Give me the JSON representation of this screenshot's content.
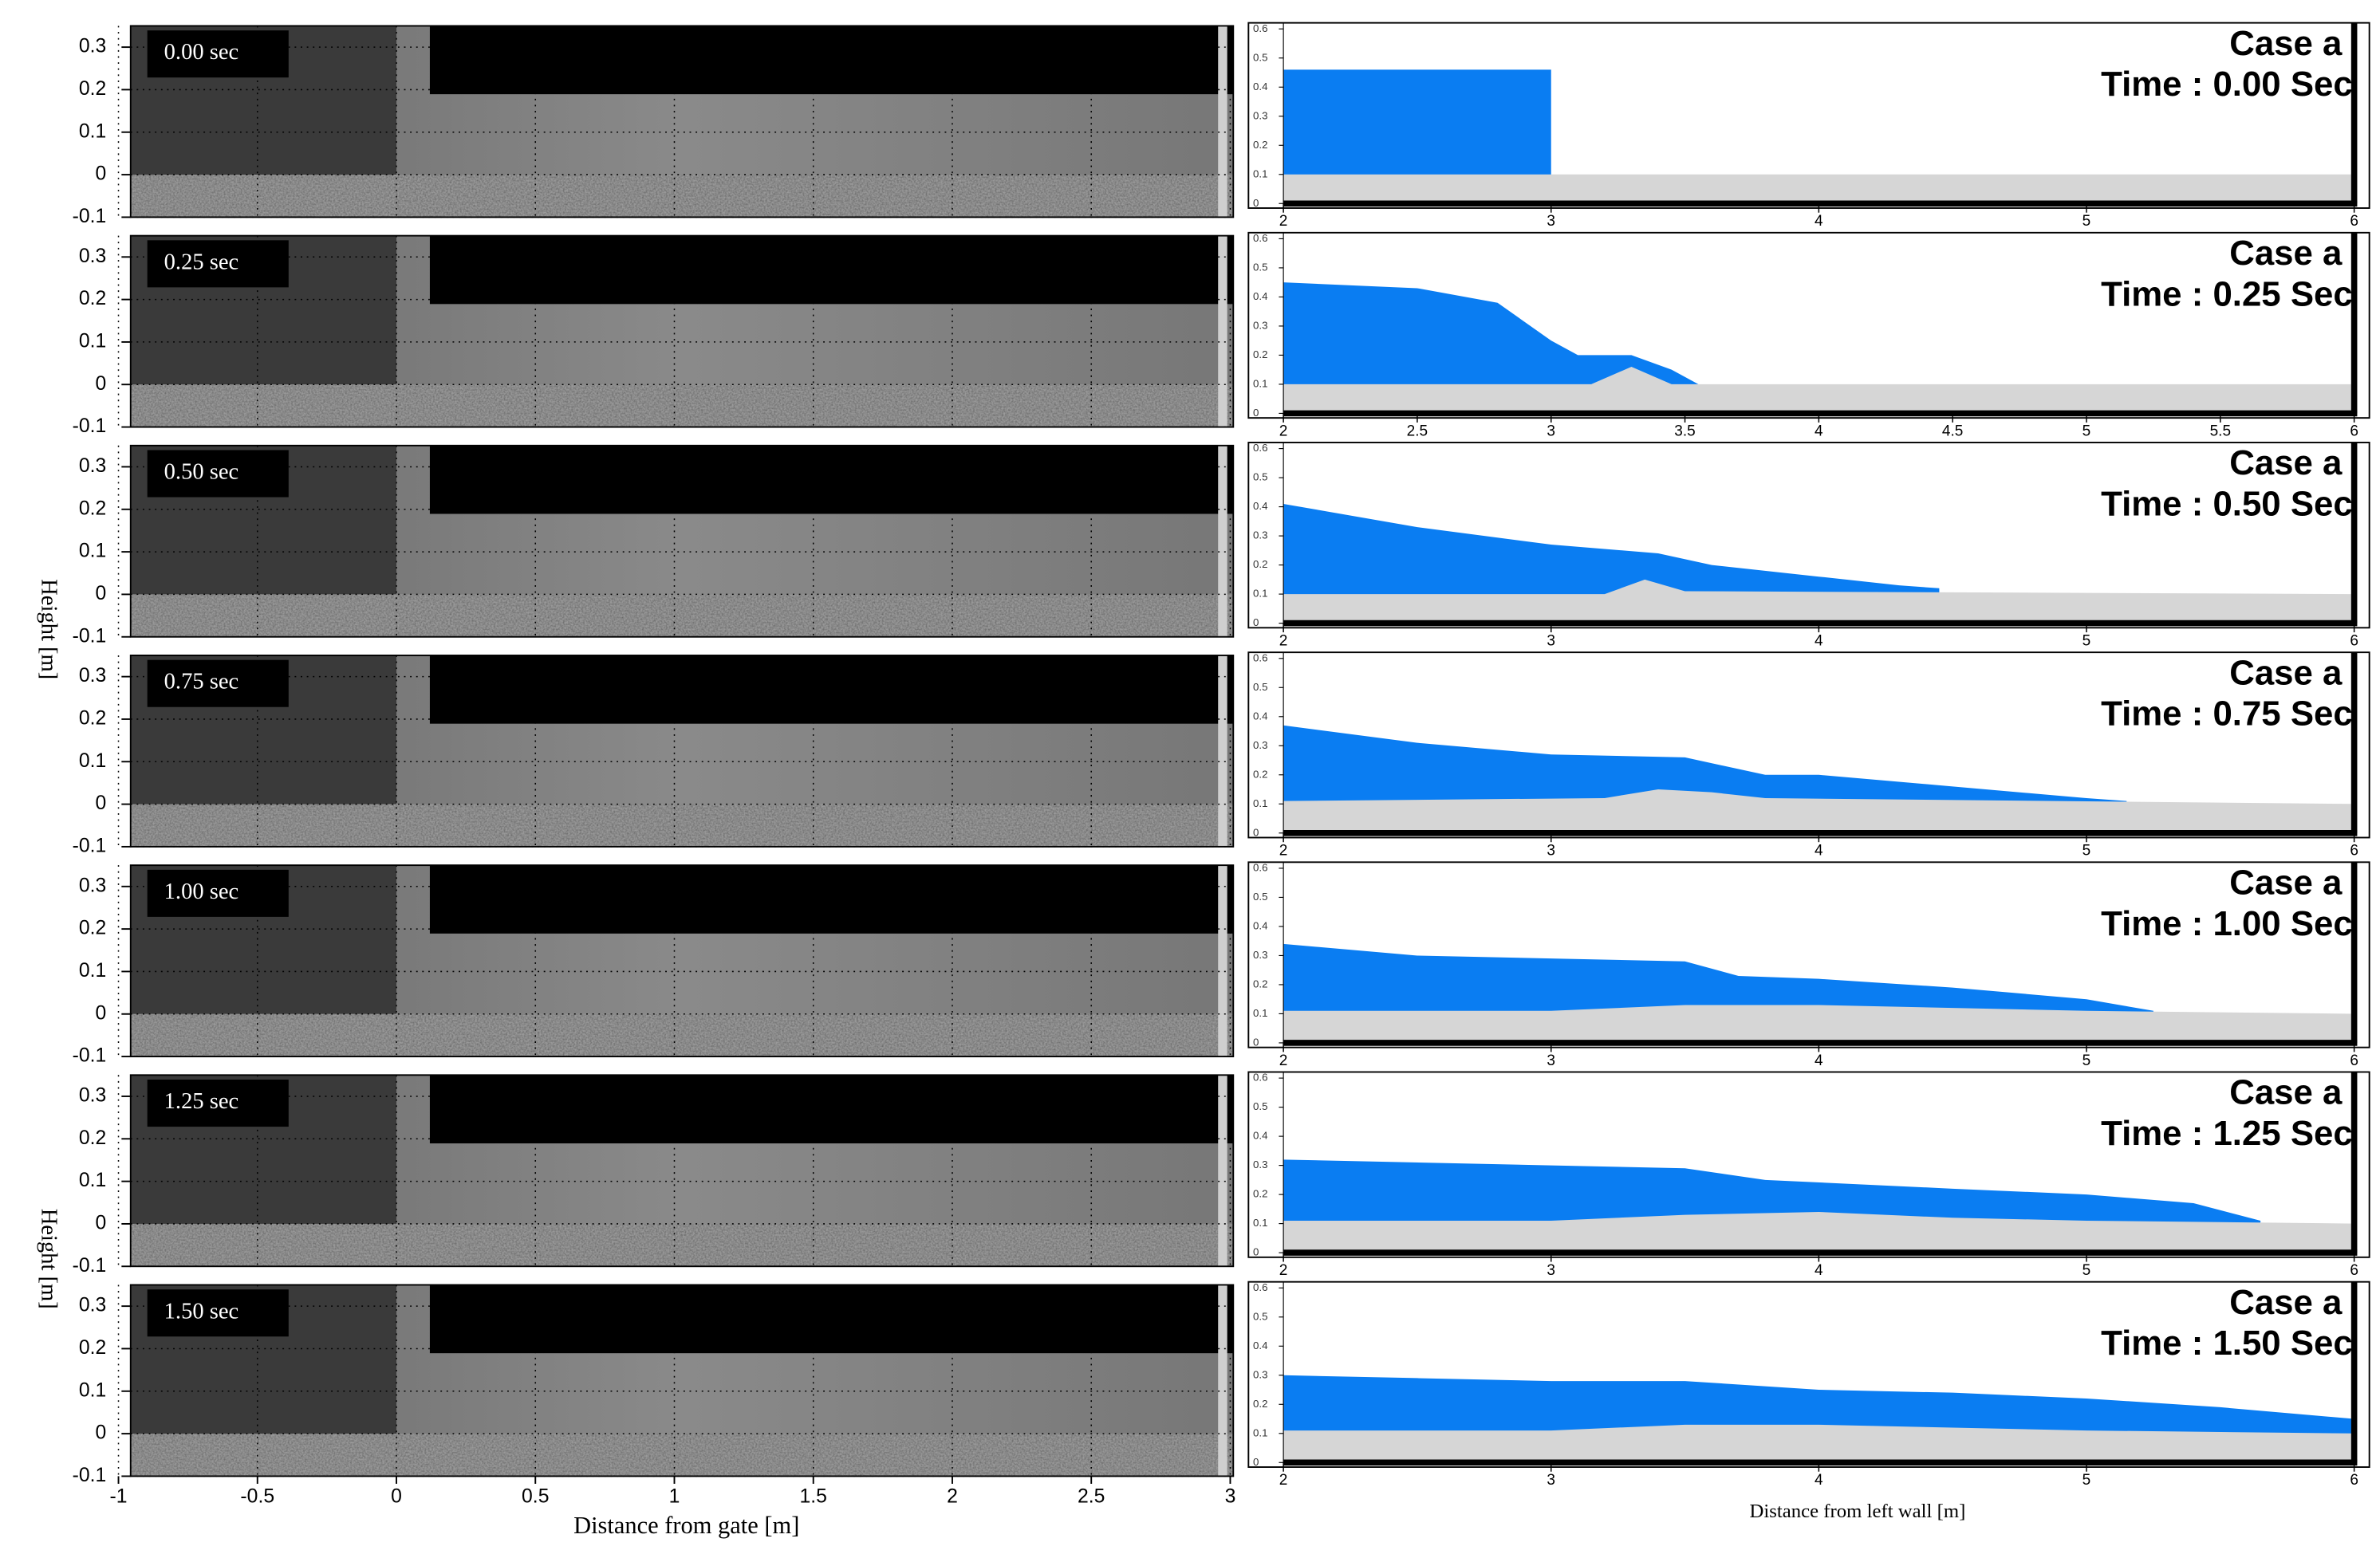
{
  "chart_data": [
    {
      "type": "image",
      "annotation": "0.00 sec",
      "xlim": [
        -1,
        3
      ],
      "ylim": [
        -0.1,
        0.35
      ],
      "xticks": [
        -1,
        -0.5,
        0,
        0.5,
        1,
        1.5,
        2,
        2.5,
        3
      ],
      "yticks": [
        0.3,
        0.2,
        0.1,
        0,
        -0.1
      ],
      "grid": true,
      "xtick_labels": false
    },
    {
      "type": "image",
      "annotation": "0.25 sec",
      "xlim": [
        -1,
        3
      ],
      "ylim": [
        -0.1,
        0.35
      ],
      "xticks": [
        -1,
        -0.5,
        0,
        0.5,
        1,
        1.5,
        2,
        2.5,
        3
      ],
      "yticks": [
        0.3,
        0.2,
        0.1,
        0,
        -0.1
      ],
      "grid": true,
      "xtick_labels": false
    },
    {
      "type": "image",
      "annotation": "0.50 sec",
      "ylabel": "Height [m]",
      "xlim": [
        -1,
        3
      ],
      "ylim": [
        -0.1,
        0.35
      ],
      "xticks": [
        -1,
        -0.5,
        0,
        0.5,
        1,
        1.5,
        2,
        2.5,
        3
      ],
      "yticks": [
        0.3,
        0.2,
        0.1,
        0,
        -0.1
      ],
      "grid": true,
      "xtick_labels": false
    },
    {
      "type": "image",
      "annotation": "0.75 sec",
      "xlim": [
        -1,
        3
      ],
      "ylim": [
        -0.1,
        0.35
      ],
      "xticks": [
        -1,
        -0.5,
        0,
        0.5,
        1,
        1.5,
        2,
        2.5,
        3
      ],
      "yticks": [
        0.3,
        0.2,
        0.1,
        0,
        -0.1
      ],
      "grid": true,
      "xtick_labels": false
    },
    {
      "type": "image",
      "annotation": "1.00 sec",
      "xlim": [
        -1,
        3
      ],
      "ylim": [
        -0.1,
        0.35
      ],
      "xticks": [
        -1,
        -0.5,
        0,
        0.5,
        1,
        1.5,
        2,
        2.5,
        3
      ],
      "yticks": [
        0.3,
        0.2,
        0.1,
        0,
        -0.1
      ],
      "grid": true,
      "xtick_labels": false
    },
    {
      "type": "image",
      "annotation": "1.25 sec",
      "ylabel": "Height [m]",
      "xlim": [
        -1,
        3
      ],
      "ylim": [
        -0.1,
        0.35
      ],
      "xticks": [
        -1,
        -0.5,
        0,
        0.5,
        1,
        1.5,
        2,
        2.5,
        3
      ],
      "yticks": [
        0.3,
        0.2,
        0.1,
        0,
        -0.1
      ],
      "grid": true,
      "xtick_labels": false
    },
    {
      "type": "image",
      "annotation": "1.50 sec",
      "xlabel": "Distance from gate [m]",
      "xlim": [
        -1,
        3
      ],
      "ylim": [
        -0.1,
        0.35
      ],
      "xticks": [
        -1,
        -0.5,
        0,
        0.5,
        1,
        1.5,
        2,
        2.5,
        3
      ],
      "yticks": [
        0.3,
        0.2,
        0.1,
        0,
        -0.1
      ],
      "grid": true,
      "xtick_labels": true
    },
    {
      "type": "area",
      "title": "Case a",
      "subtitle": "Time : 0.00 Sec",
      "xlim": [
        2,
        6
      ],
      "ylim": [
        0,
        0.6
      ],
      "xticks": [
        2,
        3,
        4,
        5,
        6
      ],
      "yticks": [
        0,
        0.1,
        0.2,
        0.3,
        0.4,
        0.5,
        0.6
      ],
      "series": [
        {
          "color": "#0a7df2",
          "x": [
            2,
            3
          ],
          "values": [
            0.46,
            0.46
          ]
        },
        {
          "color": "#d6d6d6",
          "x": [
            2,
            6
          ],
          "values": [
            0.1,
            0.1
          ]
        }
      ]
    },
    {
      "type": "area",
      "title": "Case a",
      "subtitle": "Time : 0.25 Sec",
      "xlim": [
        2,
        6
      ],
      "ylim": [
        0,
        0.6
      ],
      "xticks": [
        2,
        2.5,
        3,
        3.5,
        4,
        4.5,
        5,
        5.5,
        6
      ],
      "yticks": [
        0,
        0.1,
        0.2,
        0.3,
        0.4,
        0.5,
        0.6
      ],
      "series": [
        {
          "color": "#0a7df2",
          "x": [
            2,
            2.5,
            2.8,
            3,
            3.1,
            3.3,
            3.45,
            3.55
          ],
          "values": [
            0.45,
            0.43,
            0.38,
            0.25,
            0.2,
            0.2,
            0.15,
            0.1
          ]
        },
        {
          "color": "#d6d6d6",
          "x": [
            2,
            3.15,
            3.3,
            3.45,
            6
          ],
          "values": [
            0.1,
            0.1,
            0.16,
            0.1,
            0.1
          ]
        }
      ]
    },
    {
      "type": "area",
      "title": "Case a",
      "subtitle": "Time : 0.50 Sec",
      "xlim": [
        2,
        6
      ],
      "ylim": [
        0,
        0.6
      ],
      "xticks": [
        2,
        3,
        4,
        5,
        6
      ],
      "yticks": [
        0,
        0.1,
        0.2,
        0.3,
        0.4,
        0.5,
        0.6
      ],
      "series": [
        {
          "color": "#0a7df2",
          "x": [
            2,
            2.5,
            3,
            3.4,
            3.6,
            4,
            4.3,
            4.45
          ],
          "values": [
            0.41,
            0.33,
            0.27,
            0.24,
            0.2,
            0.16,
            0.13,
            0.12
          ]
        },
        {
          "color": "#d6d6d6",
          "x": [
            2,
            3.2,
            3.35,
            3.5,
            6
          ],
          "values": [
            0.1,
            0.1,
            0.15,
            0.11,
            0.1
          ]
        }
      ]
    },
    {
      "type": "area",
      "title": "Case a",
      "subtitle": "Time : 0.75 Sec",
      "xlim": [
        2,
        6
      ],
      "ylim": [
        0,
        0.6
      ],
      "xticks": [
        2,
        3,
        4,
        5,
        6
      ],
      "yticks": [
        0,
        0.1,
        0.2,
        0.3,
        0.4,
        0.5,
        0.6
      ],
      "series": [
        {
          "color": "#0a7df2",
          "x": [
            2,
            2.5,
            3,
            3.5,
            3.8,
            4,
            4.5,
            5,
            5.15
          ],
          "values": [
            0.37,
            0.31,
            0.27,
            0.26,
            0.2,
            0.2,
            0.16,
            0.12,
            0.11
          ]
        },
        {
          "color": "#d6d6d6",
          "x": [
            2,
            3.2,
            3.4,
            3.6,
            3.8,
            6
          ],
          "values": [
            0.11,
            0.12,
            0.15,
            0.14,
            0.12,
            0.1
          ]
        }
      ]
    },
    {
      "type": "area",
      "title": "Case a",
      "subtitle": "Time : 1.00 Sec",
      "xlim": [
        2,
        6
      ],
      "ylim": [
        0,
        0.6
      ],
      "xticks": [
        2,
        3,
        4,
        5,
        6
      ],
      "yticks": [
        0,
        0.1,
        0.2,
        0.3,
        0.4,
        0.5,
        0.6
      ],
      "series": [
        {
          "color": "#0a7df2",
          "x": [
            2,
            2.5,
            3,
            3.5,
            3.7,
            4,
            4.5,
            5,
            5.25
          ],
          "values": [
            0.34,
            0.3,
            0.29,
            0.28,
            0.23,
            0.22,
            0.19,
            0.15,
            0.11
          ]
        },
        {
          "color": "#d6d6d6",
          "x": [
            2,
            3,
            3.5,
            4,
            4.5,
            5,
            6
          ],
          "values": [
            0.11,
            0.11,
            0.13,
            0.13,
            0.12,
            0.11,
            0.1
          ]
        }
      ]
    },
    {
      "type": "area",
      "title": "Case a",
      "subtitle": "Time : 1.25 Sec",
      "xlim": [
        2,
        6
      ],
      "ylim": [
        0,
        0.6
      ],
      "xticks": [
        2,
        3,
        4,
        5,
        6
      ],
      "yticks": [
        0,
        0.1,
        0.2,
        0.3,
        0.4,
        0.5,
        0.6
      ],
      "series": [
        {
          "color": "#0a7df2",
          "x": [
            2,
            3,
            3.5,
            3.8,
            4.5,
            5,
            5.4,
            5.65
          ],
          "values": [
            0.32,
            0.3,
            0.29,
            0.25,
            0.22,
            0.2,
            0.17,
            0.11
          ]
        },
        {
          "color": "#d6d6d6",
          "x": [
            2,
            3,
            3.5,
            4,
            4.5,
            5,
            6
          ],
          "values": [
            0.11,
            0.11,
            0.13,
            0.14,
            0.12,
            0.11,
            0.1
          ]
        }
      ]
    },
    {
      "type": "area",
      "title": "Case a",
      "subtitle": "Time : 1.50 Sec",
      "xlabel": "Distance from left wall [m]",
      "xlim": [
        2,
        6
      ],
      "ylim": [
        0,
        0.6
      ],
      "xticks": [
        2,
        3,
        4,
        5,
        6
      ],
      "yticks": [
        0,
        0.1,
        0.2,
        0.3,
        0.4,
        0.5,
        0.6
      ],
      "series": [
        {
          "color": "#0a7df2",
          "x": [
            2,
            2.5,
            3,
            3.5,
            4,
            4.5,
            5,
            5.5,
            6
          ],
          "values": [
            0.3,
            0.29,
            0.28,
            0.28,
            0.25,
            0.24,
            0.22,
            0.19,
            0.15
          ]
        },
        {
          "color": "#d6d6d6",
          "x": [
            2,
            3,
            3.5,
            4,
            4.5,
            5,
            6
          ],
          "values": [
            0.11,
            0.11,
            0.13,
            0.13,
            0.12,
            0.11,
            0.1
          ]
        }
      ]
    }
  ]
}
